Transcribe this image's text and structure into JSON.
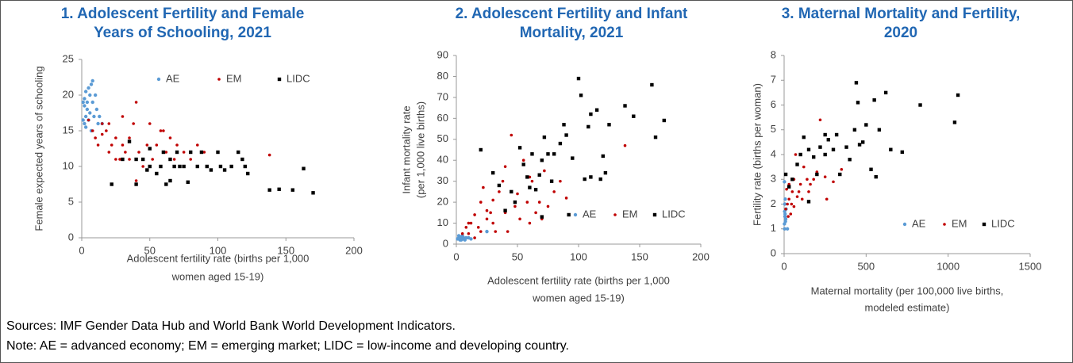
{
  "chart_data": [
    {
      "type": "scatter",
      "title": [
        "1. Adolescent Fertility and Female",
        "Years of Schooling, 2021"
      ],
      "xlabel": [
        "Adolescent fertility rate (births per 1,000",
        "women aged 15-19)"
      ],
      "ylabel": [
        "Female expected years of schooling"
      ],
      "xlim": [
        0,
        200
      ],
      "xticks": [
        0,
        50,
        100,
        150,
        200
      ],
      "ylim": [
        0,
        25
      ],
      "yticks": [
        0,
        5,
        10,
        15,
        20,
        25
      ],
      "legend": "top",
      "series": [
        {
          "name": "AE",
          "color": "#5b9bd5",
          "marker": "circle",
          "x": [
            1,
            2,
            3,
            4,
            5,
            6,
            7,
            8,
            3,
            2,
            5,
            9,
            10,
            12,
            4,
            6,
            8,
            11,
            2,
            7,
            1,
            13,
            15,
            3
          ],
          "values": [
            19,
            19.5,
            20.5,
            19,
            21,
            20,
            21.5,
            22,
            17,
            16,
            16.5,
            17,
            20,
            16,
            18,
            17.5,
            19,
            18,
            18.5,
            15,
            16.5,
            17,
            16,
            15.5
          ]
        },
        {
          "name": "EM",
          "color": "#c00000",
          "marker": "dot",
          "x": [
            5,
            8,
            10,
            12,
            15,
            18,
            20,
            22,
            25,
            28,
            30,
            32,
            35,
            38,
            40,
            42,
            45,
            48,
            50,
            52,
            55,
            58,
            60,
            62,
            65,
            68,
            70,
            72,
            75,
            80,
            85,
            90,
            15,
            25,
            40,
            55,
            138,
            20,
            30,
            35
          ],
          "values": [
            16.5,
            15,
            14,
            13,
            14.5,
            15,
            12,
            13,
            14,
            11,
            13,
            12,
            14,
            16,
            19,
            12,
            10,
            13,
            16,
            11,
            13,
            15,
            15,
            12,
            14,
            11,
            13,
            10,
            12,
            11,
            13,
            12,
            16,
            11,
            8,
            9,
            11.6,
            16,
            17,
            11
          ]
        },
        {
          "name": "LIDC",
          "color": "#000000",
          "marker": "square",
          "x": [
            22,
            30,
            35,
            40,
            45,
            48,
            50,
            55,
            58,
            60,
            62,
            65,
            68,
            70,
            72,
            75,
            78,
            80,
            85,
            88,
            92,
            95,
            100,
            102,
            105,
            110,
            115,
            118,
            120,
            122,
            138,
            145,
            155,
            163,
            170,
            50,
            40,
            65
          ],
          "values": [
            7.5,
            11,
            13.5,
            11,
            11,
            9.5,
            10,
            9,
            10,
            12,
            7.5,
            11,
            10,
            12,
            10,
            10,
            7.8,
            12,
            10,
            12,
            10,
            9.5,
            12,
            10,
            9.5,
            10,
            12,
            11,
            10,
            9,
            6.7,
            6.8,
            6.7,
            9.7,
            6.3,
            12.5,
            7.5,
            8
          ]
        }
      ]
    },
    {
      "type": "scatter",
      "title": [
        "2. Adolescent Fertility and Infant",
        "Mortality, 2021"
      ],
      "xlabel": [
        "Adolescent fertility rate (births per 1,000",
        "women aged 15-19)"
      ],
      "ylabel": [
        "Infant mortality rate",
        "(per 1,000 live births)"
      ],
      "xlim": [
        0,
        200
      ],
      "xticks": [
        0,
        50,
        100,
        150,
        200
      ],
      "ylim": [
        0,
        90
      ],
      "yticks": [
        0,
        10,
        20,
        30,
        40,
        50,
        60,
        70,
        80,
        90
      ],
      "legend": "lower right",
      "series": [
        {
          "name": "AE",
          "color": "#5b9bd5",
          "marker": "circle",
          "x": [
            1,
            2,
            3,
            4,
            5,
            6,
            7,
            8,
            2,
            3,
            5,
            10,
            12,
            4,
            6,
            25
          ],
          "values": [
            2.5,
            3,
            2,
            3.5,
            2.5,
            3,
            2,
            3,
            4,
            3,
            4,
            3,
            2.5,
            2,
            2.5,
            6
          ]
        },
        {
          "name": "EM",
          "color": "#c00000",
          "marker": "dot",
          "x": [
            5,
            8,
            10,
            12,
            15,
            18,
            20,
            22,
            25,
            28,
            30,
            32,
            35,
            38,
            40,
            42,
            45,
            48,
            50,
            52,
            55,
            58,
            60,
            62,
            65,
            68,
            70,
            72,
            75,
            80,
            85,
            90,
            15,
            20,
            30,
            40,
            138,
            25,
            60,
            10
          ],
          "values": [
            5,
            8,
            5,
            10,
            14,
            8,
            20,
            27,
            12,
            15,
            21,
            6,
            25,
            30,
            15,
            6,
            52,
            18,
            24,
            12,
            40,
            20,
            10,
            30,
            15,
            20,
            12,
            35,
            18,
            25,
            30,
            22,
            3,
            6,
            10,
            37,
            47,
            16,
            32,
            10
          ]
        },
        {
          "name": "LIDC",
          "color": "#000000",
          "marker": "square",
          "x": [
            20,
            30,
            35,
            40,
            45,
            48,
            52,
            55,
            58,
            60,
            62,
            65,
            68,
            70,
            72,
            75,
            78,
            80,
            85,
            88,
            92,
            95,
            100,
            102,
            105,
            108,
            110,
            115,
            118,
            120,
            122,
            125,
            138,
            145,
            160,
            163,
            170,
            90,
            70,
            110
          ],
          "values": [
            45,
            34,
            28,
            16,
            25,
            20,
            46,
            38,
            32,
            27,
            43,
            26,
            33,
            40,
            51,
            43,
            30,
            43,
            48,
            57,
            14,
            41,
            79,
            71,
            31,
            56,
            62,
            64,
            31,
            42,
            34,
            57,
            66,
            61,
            76,
            51,
            59,
            52,
            13,
            32
          ]
        }
      ]
    },
    {
      "type": "scatter",
      "title": [
        "3. Maternal Mortality and Fertility,",
        "2020"
      ],
      "xlabel": [
        "Maternal mortality (per 100,000 live births,",
        "modeled estimate)"
      ],
      "ylabel": [
        "Fertility rate (births per woman)"
      ],
      "xlim": [
        0,
        1500
      ],
      "xticks": [
        0,
        500,
        1000,
        1500
      ],
      "ylim": [
        0,
        8
      ],
      "yticks": [
        0,
        1,
        2,
        3,
        4,
        5,
        6,
        7,
        8
      ],
      "legend": "lower right",
      "series": [
        {
          "name": "AE",
          "color": "#5b9bd5",
          "marker": "circle",
          "x": [
            2,
            5,
            3,
            8,
            4,
            6,
            10,
            2,
            12,
            3,
            20,
            7
          ],
          "values": [
            1.2,
            1.5,
            1.7,
            1.3,
            2.0,
            1.6,
            1.4,
            2.9,
            1.8,
            1.0,
            1.0,
            2.2
          ]
        },
        {
          "name": "EM",
          "color": "#c00000",
          "marker": "dot",
          "x": [
            10,
            20,
            30,
            40,
            50,
            60,
            80,
            100,
            120,
            150,
            180,
            200,
            220,
            250,
            300,
            350,
            15,
            25,
            45,
            70,
            90,
            110,
            140,
            160,
            260,
            30,
            60
          ],
          "values": [
            1.8,
            2.0,
            2.2,
            1.6,
            2.5,
            3.0,
            2.3,
            2.8,
            3.5,
            2.5,
            3.0,
            3.3,
            5.4,
            3.1,
            2.9,
            3.4,
            2.6,
            1.5,
            2.0,
            4.0,
            2.5,
            2.2,
            3.0,
            2.8,
            2.2,
            2.8,
            1.9
          ]
        },
        {
          "name": "LIDC",
          "color": "#000000",
          "marker": "square",
          "x": [
            10,
            30,
            50,
            80,
            100,
            120,
            150,
            180,
            200,
            220,
            250,
            270,
            300,
            340,
            380,
            400,
            430,
            440,
            450,
            460,
            480,
            500,
            530,
            550,
            560,
            580,
            620,
            650,
            720,
            830,
            1040,
            1060,
            250,
            150,
            320
          ],
          "values": [
            3.2,
            2.7,
            3.0,
            3.6,
            4.0,
            4.7,
            4.2,
            3.9,
            3.2,
            4.3,
            4.8,
            4.6,
            4.2,
            3.2,
            4.3,
            3.8,
            5.0,
            6.9,
            6.1,
            4.4,
            4.5,
            5.2,
            3.4,
            6.2,
            3.1,
            5.0,
            6.5,
            4.2,
            4.1,
            6.0,
            5.3,
            6.4,
            4.0,
            2.1,
            4.8
          ]
        }
      ]
    }
  ],
  "sources": "Sources: IMF Gender Data Hub and World Bank World Development Indicators.",
  "note": "Note: AE = advanced economy; EM = emerging market; LIDC = low-income and developing country."
}
